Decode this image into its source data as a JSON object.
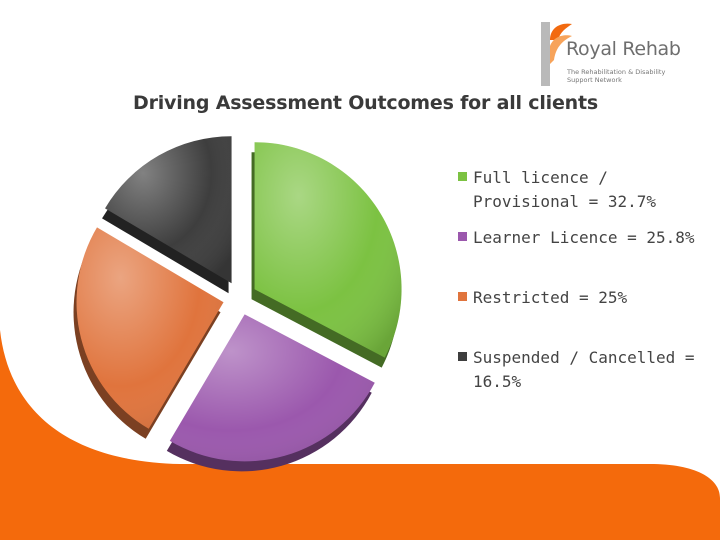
{
  "brand": {
    "name": "Royal Rehab",
    "tagline": "The Rehabilitation & Disability Support Network",
    "accent": "#f26a0f",
    "logo_gray": "#a7a7a7"
  },
  "chart_data": {
    "type": "pie",
    "title": "Driving Assessment Outcomes for all clients",
    "style": "exploded 3d",
    "legend_position": "right",
    "slices": [
      {
        "label": "Full licence / Provisional = 32.7%",
        "value": 32.7,
        "color": "#7cc242"
      },
      {
        "label": "Learner Licence = 25.8%",
        "value": 25.8,
        "color": "#9b58ad"
      },
      {
        "label": "Restricted = 25%",
        "value": 25,
        "color": "#e0743d"
      },
      {
        "label": "Suspended / Cancelled = 16.5%",
        "value": 16.5,
        "color": "#3e3e3e"
      }
    ]
  }
}
